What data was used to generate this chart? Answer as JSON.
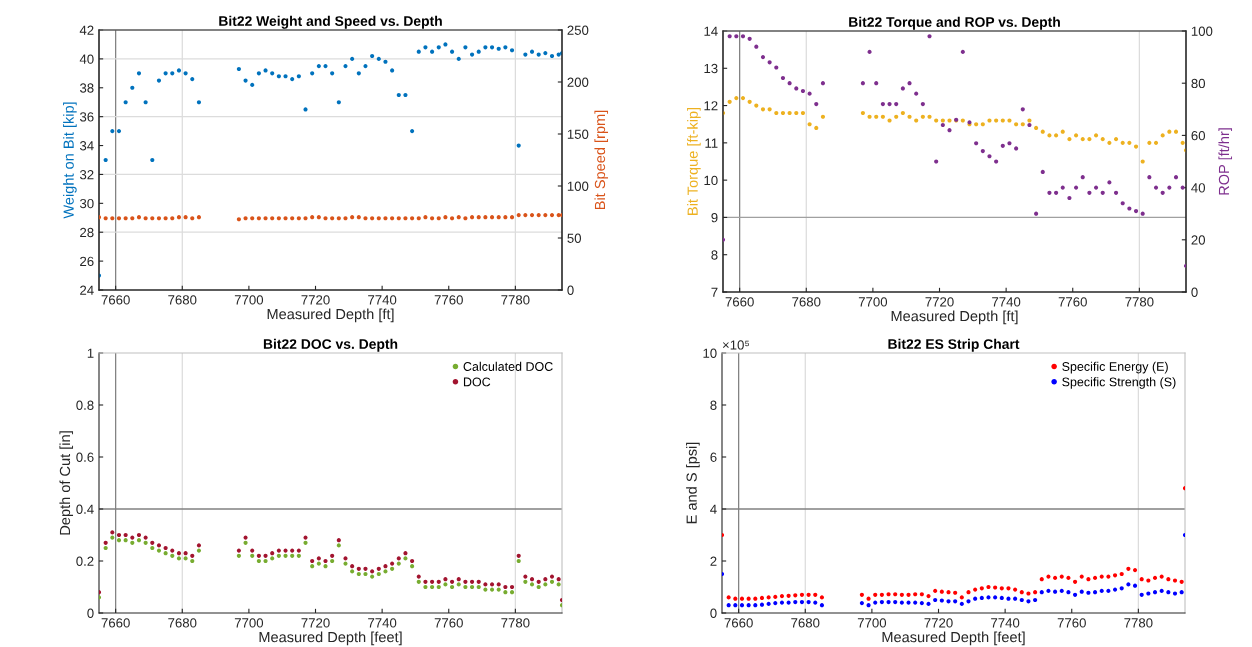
{
  "chart_data": [
    {
      "type": "scatter",
      "title": "Bit22 Weight and Speed vs. Depth",
      "xlabel": "Measured Depth [ft]",
      "ylabel": "Weight on Bit [kip]",
      "y2label": "Bit Speed [rpm]",
      "marker": "circle",
      "grid": false,
      "x": [
        7655,
        7657,
        7659,
        7661,
        7663,
        7665,
        7667,
        7669,
        7671,
        7673,
        7675,
        7677,
        7679,
        7681,
        7683,
        7685,
        7687,
        7689,
        7691,
        7693,
        7695,
        7697,
        7699,
        7701,
        7703,
        7705,
        7707,
        7709,
        7711,
        7713,
        7715,
        7717,
        7719,
        7721,
        7723,
        7725,
        7727,
        7729,
        7731,
        7733,
        7735,
        7737,
        7739,
        7741,
        7743,
        7745,
        7747,
        7749,
        7751,
        7753,
        7755,
        7757,
        7759,
        7761,
        7763,
        7765,
        7767,
        7769,
        7771,
        7773,
        7775,
        7777,
        7779,
        7781,
        7783,
        7785,
        7787,
        7789,
        7791,
        7793,
        7794
      ],
      "xlim": [
        7655,
        7794
      ],
      "xticks": [
        7660,
        7680,
        7700,
        7720,
        7740,
        7760,
        7780
      ],
      "ylim": [
        24,
        42
      ],
      "yticks": [
        24,
        26,
        28,
        30,
        32,
        34,
        36,
        38,
        40,
        42
      ],
      "y2lim": [
        0,
        250
      ],
      "y2ticks": [
        0,
        50,
        100,
        150,
        200,
        250
      ],
      "ref_lines": [
        {
          "axis": "x",
          "value": 7660,
          "color": "#808080"
        },
        {
          "axis": "x",
          "value": 7680,
          "color": "#dcdcdc"
        },
        {
          "axis": "x",
          "value": 7780,
          "color": "#dcdcdc"
        },
        {
          "axis": "y",
          "value": 28,
          "color": "#dcdcdc"
        },
        {
          "axis": "y",
          "value": 32,
          "color": "#dcdcdc"
        },
        {
          "axis": "y",
          "value": 36,
          "color": "#dcdcdc"
        },
        {
          "axis": "y",
          "value": 40,
          "color": "#dcdcdc"
        }
      ],
      "series": [
        {
          "color": "#0072bd",
          "values": [
            25,
            33,
            35,
            35,
            37,
            38,
            39,
            37,
            33,
            38.5,
            39,
            39,
            39.2,
            39,
            38.6,
            37,
            null,
            null,
            null,
            null,
            null,
            39.3,
            38.5,
            38.2,
            39,
            39.2,
            39,
            38.8,
            38.8,
            38.6,
            38.8,
            36.5,
            39,
            39.5,
            39.5,
            39,
            37,
            39.5,
            40,
            39,
            39.5,
            40.2,
            40,
            39.8,
            39.2,
            37.5,
            37.5,
            35,
            40.5,
            40.8,
            40.5,
            40.8,
            41,
            40.5,
            40,
            40.8,
            40.3,
            40.5,
            40.8,
            40.8,
            40.7,
            40.8,
            40.6,
            34,
            40.3,
            40.5,
            40.3,
            40.4,
            40.2,
            40.3,
            40.4
          ]
        },
        {
          "color": "#d95319",
          "axis": "y2",
          "values": [
            70,
            69,
            69,
            69,
            69,
            69,
            70,
            69,
            69,
            69,
            69,
            69,
            70,
            70,
            69,
            70,
            null,
            null,
            null,
            null,
            null,
            68,
            69,
            69,
            69,
            69,
            69,
            69,
            69,
            69,
            69,
            69,
            70,
            70,
            69,
            69,
            69,
            69,
            70,
            70,
            69,
            69,
            69,
            69,
            69,
            69,
            69,
            69,
            69,
            70,
            69,
            69,
            70,
            69,
            70,
            69,
            70,
            70,
            70,
            70,
            70,
            70,
            70,
            72,
            72,
            72,
            72,
            72,
            72,
            72,
            72
          ]
        }
      ]
    },
    {
      "type": "scatter",
      "title": "Bit22 Torque and ROP vs. Depth",
      "xlabel": "Measured Depth [ft]",
      "ylabel": "Bit Torque [ft-kip]",
      "y2label": "ROP [ft/hr]",
      "marker": "circle",
      "grid": false,
      "x": [
        7655,
        7657,
        7659,
        7661,
        7663,
        7665,
        7667,
        7669,
        7671,
        7673,
        7675,
        7677,
        7679,
        7681,
        7683,
        7685,
        7687,
        7689,
        7691,
        7693,
        7695,
        7697,
        7699,
        7701,
        7703,
        7705,
        7707,
        7709,
        7711,
        7713,
        7715,
        7717,
        7719,
        7721,
        7723,
        7725,
        7727,
        7729,
        7731,
        7733,
        7735,
        7737,
        7739,
        7741,
        7743,
        7745,
        7747,
        7749,
        7751,
        7753,
        7755,
        7757,
        7759,
        7761,
        7763,
        7765,
        7767,
        7769,
        7771,
        7773,
        7775,
        7777,
        7779,
        7781,
        7783,
        7785,
        7787,
        7789,
        7791,
        7793,
        7794
      ],
      "xlim": [
        7655,
        7794
      ],
      "xticks": [
        7660,
        7680,
        7700,
        7720,
        7740,
        7760,
        7780
      ],
      "ylim": [
        7,
        14
      ],
      "yticks": [
        7,
        8,
        9,
        10,
        11,
        12,
        13,
        14
      ],
      "y2lim": [
        0,
        100
      ],
      "y2ticks": [
        0,
        20,
        40,
        60,
        80,
        100
      ],
      "ref_lines": [
        {
          "axis": "x",
          "value": 7660,
          "color": "#808080"
        },
        {
          "axis": "x",
          "value": 7680,
          "color": "#dcdcdc"
        },
        {
          "axis": "x",
          "value": 7780,
          "color": "#dcdcdc"
        },
        {
          "axis": "y",
          "value": 9,
          "color": "#a0a0a0"
        }
      ],
      "series": [
        {
          "color": "#edb120",
          "values": [
            11.8,
            12.1,
            12.2,
            12.2,
            12.1,
            12.0,
            11.9,
            11.9,
            11.8,
            11.8,
            11.8,
            11.8,
            11.8,
            11.5,
            11.4,
            11.7,
            null,
            null,
            null,
            null,
            null,
            11.8,
            11.7,
            11.7,
            11.7,
            11.6,
            11.7,
            11.8,
            11.7,
            11.6,
            11.7,
            11.7,
            11.6,
            11.6,
            11.6,
            11.6,
            11.6,
            11.5,
            11.5,
            11.5,
            11.6,
            11.6,
            11.6,
            11.6,
            11.5,
            11.5,
            11.6,
            11.4,
            11.3,
            11.2,
            11.2,
            11.3,
            11.1,
            11.2,
            11.1,
            11.1,
            11.2,
            11.1,
            11.0,
            11.1,
            11.0,
            11.0,
            10.9,
            10.5,
            11.0,
            11.0,
            11.2,
            11.3,
            11.3,
            11.0,
            10.8
          ]
        },
        {
          "color": "#7e2f8e",
          "axis": "y2",
          "values": [
            20,
            98,
            98,
            98,
            97,
            94,
            90,
            88,
            86,
            82,
            80,
            78,
            77,
            76,
            72,
            80,
            null,
            null,
            null,
            null,
            null,
            80,
            92,
            80,
            72,
            72,
            72,
            78,
            80,
            76,
            72,
            98,
            50,
            64,
            62,
            66,
            92,
            65,
            57,
            54,
            52,
            50,
            56,
            57,
            55,
            70,
            64,
            30,
            46,
            38,
            38,
            40,
            36,
            40,
            44,
            38,
            40,
            38,
            42,
            38,
            34,
            32,
            31,
            30,
            44,
            40,
            38,
            40,
            44,
            40,
            10
          ]
        }
      ]
    },
    {
      "type": "scatter",
      "title": "Bit22 DOC vs. Depth",
      "xlabel": "Measured Depth [feet]",
      "ylabel": "Depth of Cut [in]",
      "marker": "circle",
      "grid": false,
      "legend": "top right",
      "x": [
        7655,
        7657,
        7659,
        7661,
        7663,
        7665,
        7667,
        7669,
        7671,
        7673,
        7675,
        7677,
        7679,
        7681,
        7683,
        7685,
        7687,
        7689,
        7691,
        7693,
        7695,
        7697,
        7699,
        7701,
        7703,
        7705,
        7707,
        7709,
        7711,
        7713,
        7715,
        7717,
        7719,
        7721,
        7723,
        7725,
        7727,
        7729,
        7731,
        7733,
        7735,
        7737,
        7739,
        7741,
        7743,
        7745,
        7747,
        7749,
        7751,
        7753,
        7755,
        7757,
        7759,
        7761,
        7763,
        7765,
        7767,
        7769,
        7771,
        7773,
        7775,
        7777,
        7779,
        7781,
        7783,
        7785,
        7787,
        7789,
        7791,
        7793,
        7794
      ],
      "xlim": [
        7655,
        7794
      ],
      "xticks": [
        7660,
        7680,
        7700,
        7720,
        7740,
        7760,
        7780
      ],
      "ylim": [
        0,
        1
      ],
      "yticks": [
        0,
        0.2,
        0.4,
        0.6,
        0.8,
        1
      ],
      "ref_lines": [
        {
          "axis": "x",
          "value": 7660,
          "color": "#808080"
        },
        {
          "axis": "x",
          "value": 7680,
          "color": "#dcdcdc"
        },
        {
          "axis": "x",
          "value": 7780,
          "color": "#dcdcdc"
        },
        {
          "axis": "y",
          "value": 0.4,
          "color": "#808080"
        }
      ],
      "series": [
        {
          "name": "Calculated DOC",
          "color": "#77ac30",
          "values": [
            0.06,
            0.25,
            0.29,
            0.28,
            0.28,
            0.27,
            0.28,
            0.27,
            0.25,
            0.24,
            0.23,
            0.22,
            0.21,
            0.21,
            0.2,
            0.24,
            null,
            null,
            null,
            null,
            null,
            0.22,
            0.27,
            0.22,
            0.2,
            0.2,
            0.21,
            0.22,
            0.22,
            0.22,
            0.22,
            0.27,
            0.18,
            0.19,
            0.18,
            0.2,
            0.26,
            0.19,
            0.16,
            0.15,
            0.15,
            0.14,
            0.15,
            0.16,
            0.17,
            0.19,
            0.21,
            0.18,
            0.12,
            0.1,
            0.1,
            0.1,
            0.11,
            0.1,
            0.11,
            0.1,
            0.1,
            0.1,
            0.09,
            0.09,
            0.09,
            0.08,
            0.08,
            0.2,
            0.12,
            0.11,
            0.1,
            0.11,
            0.12,
            0.11,
            0.03
          ]
        },
        {
          "name": "DOC",
          "color": "#a2142f",
          "values": [
            0.08,
            0.27,
            0.31,
            0.3,
            0.3,
            0.29,
            0.3,
            0.29,
            0.27,
            0.26,
            0.25,
            0.24,
            0.23,
            0.23,
            0.22,
            0.26,
            null,
            null,
            null,
            null,
            null,
            0.24,
            0.29,
            0.24,
            0.22,
            0.22,
            0.23,
            0.24,
            0.24,
            0.24,
            0.24,
            0.29,
            0.2,
            0.21,
            0.2,
            0.22,
            0.28,
            0.21,
            0.18,
            0.17,
            0.17,
            0.16,
            0.17,
            0.18,
            0.19,
            0.21,
            0.23,
            0.2,
            0.14,
            0.12,
            0.12,
            0.12,
            0.13,
            0.12,
            0.13,
            0.12,
            0.12,
            0.12,
            0.11,
            0.11,
            0.11,
            0.1,
            0.1,
            0.22,
            0.14,
            0.13,
            0.12,
            0.13,
            0.14,
            0.13,
            0.05
          ]
        }
      ]
    },
    {
      "type": "scatter",
      "title": "Bit22 ES Strip Chart",
      "xlabel": "Measured Depth [feet]",
      "ylabel": "E and S [psi]",
      "annotations": [
        "×10⁵"
      ],
      "marker": "circle",
      "grid": false,
      "legend": "top right",
      "x": [
        7655,
        7657,
        7659,
        7661,
        7663,
        7665,
        7667,
        7669,
        7671,
        7673,
        7675,
        7677,
        7679,
        7681,
        7683,
        7685,
        7687,
        7689,
        7691,
        7693,
        7695,
        7697,
        7699,
        7701,
        7703,
        7705,
        7707,
        7709,
        7711,
        7713,
        7715,
        7717,
        7719,
        7721,
        7723,
        7725,
        7727,
        7729,
        7731,
        7733,
        7735,
        7737,
        7739,
        7741,
        7743,
        7745,
        7747,
        7749,
        7751,
        7753,
        7755,
        7757,
        7759,
        7761,
        7763,
        7765,
        7767,
        7769,
        7771,
        7773,
        7775,
        7777,
        7779,
        7781,
        7783,
        7785,
        7787,
        7789,
        7791,
        7793,
        7794
      ],
      "xlim": [
        7655,
        7794
      ],
      "xticks": [
        7660,
        7680,
        7700,
        7720,
        7740,
        7760,
        7780
      ],
      "ylim": [
        0,
        10
      ],
      "yticks": [
        0,
        2,
        4,
        6,
        8,
        10
      ],
      "ref_lines": [
        {
          "axis": "x",
          "value": 7660,
          "color": "#808080"
        },
        {
          "axis": "x",
          "value": 7680,
          "color": "#dcdcdc"
        },
        {
          "axis": "x",
          "value": 7780,
          "color": "#dcdcdc"
        },
        {
          "axis": "y",
          "value": 4,
          "color": "#808080"
        }
      ],
      "series": [
        {
          "name": "Specific Energy (E)",
          "color": "#ff0000",
          "values": [
            3.0,
            0.6,
            0.55,
            0.55,
            0.55,
            0.55,
            0.58,
            0.6,
            0.62,
            0.65,
            0.66,
            0.68,
            0.7,
            0.7,
            0.7,
            0.6,
            null,
            null,
            null,
            null,
            null,
            0.7,
            0.55,
            0.7,
            0.7,
            0.72,
            0.72,
            0.7,
            0.7,
            0.72,
            0.72,
            0.65,
            0.85,
            0.82,
            0.8,
            0.78,
            0.6,
            0.8,
            0.9,
            0.95,
            1.0,
            0.98,
            0.95,
            0.95,
            0.9,
            0.8,
            0.75,
            0.8,
            1.3,
            1.4,
            1.35,
            1.4,
            1.35,
            1.2,
            1.4,
            1.3,
            1.35,
            1.4,
            1.4,
            1.45,
            1.5,
            1.7,
            1.65,
            1.3,
            1.25,
            1.35,
            1.4,
            1.3,
            1.25,
            1.2,
            4.8
          ]
        },
        {
          "name": "Specific Strength (S)",
          "color": "#0000ff",
          "values": [
            1.5,
            0.3,
            0.3,
            0.3,
            0.3,
            0.3,
            0.32,
            0.35,
            0.38,
            0.4,
            0.4,
            0.42,
            0.42,
            0.42,
            0.4,
            0.3,
            null,
            null,
            null,
            null,
            null,
            0.38,
            0.3,
            0.4,
            0.42,
            0.42,
            0.42,
            0.4,
            0.4,
            0.4,
            0.38,
            0.35,
            0.5,
            0.48,
            0.45,
            0.45,
            0.35,
            0.45,
            0.55,
            0.58,
            0.6,
            0.6,
            0.58,
            0.55,
            0.55,
            0.5,
            0.45,
            0.5,
            0.8,
            0.85,
            0.82,
            0.85,
            0.8,
            0.7,
            0.82,
            0.78,
            0.8,
            0.85,
            0.85,
            0.9,
            0.95,
            1.1,
            1.05,
            0.7,
            0.75,
            0.8,
            0.85,
            0.8,
            0.75,
            0.8,
            3.0
          ]
        }
      ]
    }
  ]
}
